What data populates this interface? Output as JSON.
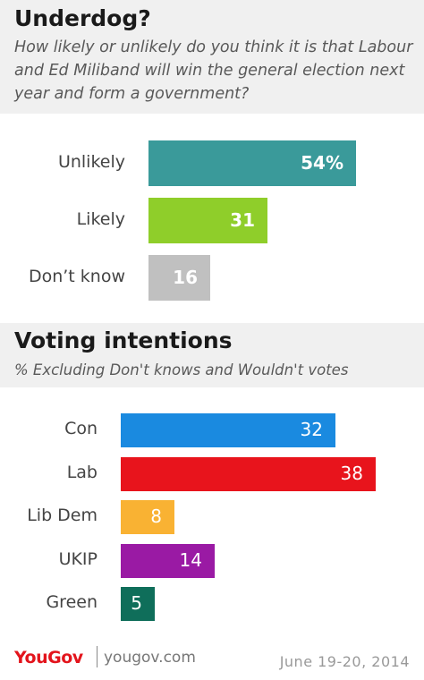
{
  "colors": {
    "unlikely": "#3a9a9a",
    "likely": "#8fce2a",
    "dont_know": "#c0c0c0",
    "con": "#1a8ae0",
    "lab": "#e8141c",
    "lib_dem": "#f9b233",
    "ukip": "#9a1aa4",
    "green": "#0f6e5a",
    "band": "#f0f0f0",
    "brand": "#e3141c"
  },
  "chart_data": [
    {
      "type": "bar",
      "orientation": "horizontal",
      "title": "Underdog?",
      "subtitle": "How likely or unlikely do you think it is that Labour and Ed Miliband will win the general election next year and form a government?",
      "categories": [
        "Unlikely",
        "Likely",
        "Don’t know"
      ],
      "values": [
        54,
        31,
        16
      ],
      "value_labels": [
        "54%",
        "31",
        "16"
      ],
      "xlim": [
        0,
        54
      ]
    },
    {
      "type": "bar",
      "orientation": "horizontal",
      "title": "Voting intentions",
      "subtitle": "% Excluding Don't knows and Wouldn't votes",
      "categories": [
        "Con",
        "Lab",
        "Lib Dem",
        "UKIP",
        "Green"
      ],
      "values": [
        32,
        38,
        8,
        14,
        5
      ],
      "value_labels": [
        "32",
        "38",
        "8",
        "14",
        "5"
      ],
      "xlim": [
        0,
        38
      ]
    }
  ],
  "footer": {
    "logo": "YouGov",
    "site": "yougov.com",
    "date": "June 19-20,  2014"
  }
}
